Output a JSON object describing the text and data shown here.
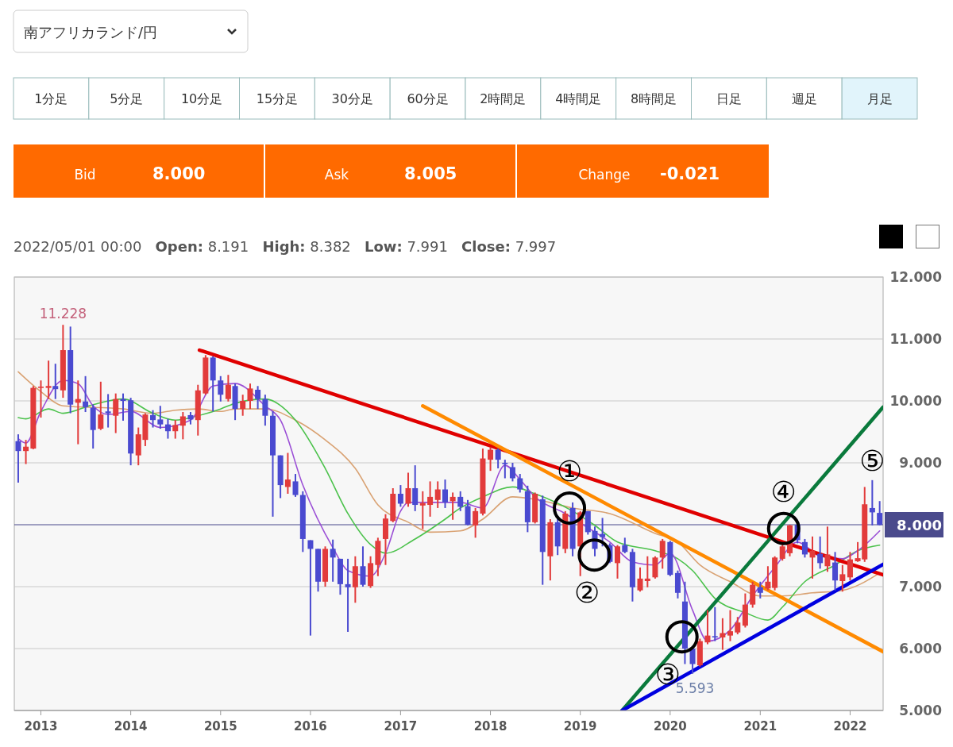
{
  "chart_data": [
    {
      "type": "other",
      "title": "南アフリカランド/円",
      "annotations": [
        "1分足",
        "5分足",
        "10分足",
        "15分足",
        "30分足",
        "60分足",
        "2時間足",
        "4時間足",
        "8時間足",
        "日足",
        "週足",
        "月足",
        "Bid",
        "8.000",
        "Ask",
        "8.005",
        "Change",
        "-0.021"
      ]
    },
    {
      "type": "candlestick",
      "subtitle": "2022/05/01 00:00   Open: 8.191   High: 8.382   Low: 7.991   Close: 7.997",
      "xlim": [
        "2012-09-15",
        "2022-05-15"
      ],
      "xticks": [
        "2013",
        "2014",
        "2015",
        "2016",
        "2017",
        "2018",
        "2019",
        "2020",
        "2021",
        "2022"
      ],
      "ylim": [
        5,
        12
      ],
      "yticks": [
        {
          "value": 12,
          "label": "12.000"
        },
        {
          "value": 11,
          "label": "11.000"
        },
        {
          "value": 10,
          "label": "10.000"
        },
        {
          "value": 9,
          "label": "9.000"
        },
        {
          "value": 7,
          "label": "7.000"
        },
        {
          "value": 6,
          "label": "6.000"
        },
        {
          "value": 5,
          "label": "5.000"
        }
      ],
      "grid": "y",
      "ref_lines": [
        {
          "axis": "y",
          "value": 8.0,
          "label": "8.000",
          "color": "#4a4a8c"
        }
      ],
      "annotations": [
        {
          "text": "11.228",
          "x": "2013-04",
          "y": 11.228
        },
        {
          "text": "5.593",
          "x": "2020-04",
          "y": 5.593
        },
        {
          "text": "①",
          "x": "2018-11-18",
          "y": 8.27
        },
        {
          "text": "②",
          "x": "2019-02-27",
          "y": 7.51
        },
        {
          "text": "③",
          "x": "2020-02-18",
          "y": 6.19
        },
        {
          "text": "④",
          "x": "2021-04-06",
          "y": 7.94
        },
        {
          "text": "⑤",
          "x": "2022-04",
          "y": 8.72
        }
      ],
      "series": [
        {
          "type": "line",
          "color": "#d9a273",
          "x": [
            "2012-10",
            "2013-01",
            "2013-04",
            "2013-12",
            "2014-04",
            "2014-07",
            "2014-10",
            "2015-01",
            "2015-03",
            "2015-07",
            "2015-11",
            "2016-03",
            "2016-07",
            "2016-10",
            "2017-02",
            "2017-05",
            "2017-09",
            "2017-12",
            "2018-04",
            "2018-07",
            "2018-12",
            "2019-05",
            "2019-11",
            "2020-02",
            "2020-05",
            "2020-09",
            "2021-01",
            "2021-04",
            "2021-08",
            "2021-12",
            "2022-05"
          ],
          "values": [
            10.47,
            10.15,
            9.92,
            9.87,
            9.8,
            9.85,
            9.87,
            9.83,
            9.87,
            9.87,
            9.69,
            9.37,
            8.91,
            8.32,
            8.04,
            7.88,
            7.9,
            8.09,
            8.45,
            8.41,
            8.27,
            8.18,
            7.86,
            7.72,
            7.35,
            7.08,
            6.85,
            6.85,
            6.9,
            6.94,
            7.22
          ]
        },
        {
          "type": "line",
          "color": "#4cc24c",
          "x": [
            "2012-10",
            "2012-11",
            "2013-02",
            "2013-04",
            "2013-08",
            "2013-12",
            "2014-04",
            "2014-07",
            "2014-10",
            "2015-01",
            "2015-03",
            "2015-07",
            "2015-11",
            "2016-03",
            "2016-06",
            "2016-09",
            "2016-11",
            "2017-03",
            "2017-07",
            "2017-09",
            "2017-12",
            "2018-04",
            "2018-07",
            "2018-12",
            "2019-03",
            "2019-06",
            "2019-11",
            "2020-02",
            "2020-04",
            "2020-07",
            "2020-11",
            "2021-02",
            "2021-04",
            "2021-07",
            "2021-11",
            "2022-02",
            "2022-05"
          ],
          "values": [
            9.73,
            9.71,
            9.87,
            9.8,
            9.94,
            10.03,
            9.8,
            9.69,
            9.76,
            9.87,
            9.96,
            10.03,
            9.69,
            8.91,
            8.18,
            7.68,
            7.54,
            7.77,
            8.09,
            8.27,
            8.45,
            8.61,
            8.5,
            8.22,
            7.99,
            7.72,
            7.58,
            7.45,
            7.26,
            6.81,
            6.58,
            6.46,
            6.67,
            7.08,
            7.35,
            7.58,
            7.67
          ]
        },
        {
          "type": "line",
          "color": "#9b4fd6",
          "x": [
            "2012-10",
            "2012-11",
            "2013-01",
            "2013-04",
            "2013-06",
            "2013-08",
            "2013-10",
            "2014-01",
            "2014-05",
            "2014-09",
            "2014-12",
            "2015-03",
            "2015-07",
            "2015-09",
            "2015-12",
            "2016-04",
            "2016-06",
            "2016-09",
            "2016-11",
            "2017-01",
            "2017-02",
            "2017-09",
            "2017-12",
            "2018-03",
            "2018-05",
            "2018-07",
            "2018-11",
            "2019-02",
            "2019-05",
            "2019-08",
            "2019-11",
            "2020-01",
            "2020-04",
            "2020-06",
            "2020-09",
            "2020-12",
            "2021-03",
            "2021-06",
            "2021-09",
            "2021-12",
            "2022-02",
            "2022-05"
          ],
          "values": [
            9.39,
            9.32,
            9.83,
            10.33,
            10.28,
            9.92,
            9.78,
            9.83,
            9.57,
            9.69,
            10.24,
            10.28,
            9.92,
            9.69,
            8.64,
            7.63,
            7.26,
            7.17,
            7.54,
            8.22,
            8.36,
            8.36,
            8.27,
            8.96,
            8.73,
            8.45,
            8.18,
            7.95,
            7.72,
            7.4,
            7.35,
            7.54,
            6.62,
            6.12,
            6.3,
            6.85,
            7.31,
            7.72,
            7.49,
            7.45,
            7.58,
            7.9
          ]
        },
        {
          "type": "candlestick",
          "color": "#e23b3b",
          "x": [
            "2012-11",
            "2012-12",
            "2013-01",
            "2013-02",
            "2013-04",
            "2013-06",
            "2013-09",
            "2013-11",
            "2014-02",
            "2014-03",
            "2014-07",
            "2014-08",
            "2014-10",
            "2014-11",
            "2015-02",
            "2015-04",
            "2015-05",
            "2015-10",
            "2016-03",
            "2016-07",
            "2016-09",
            "2016-10",
            "2016-11",
            "2016-12",
            "2017-02",
            "2017-04",
            "2017-05",
            "2017-06",
            "2017-08",
            "2017-11",
            "2017-12",
            "2018-01",
            "2018-07",
            "2018-09",
            "2018-11",
            "2019-01",
            "2019-06",
            "2019-09",
            "2019-10",
            "2019-11",
            "2019-12",
            "2020-05",
            "2020-06",
            "2020-08",
            "2020-09",
            "2020-10",
            "2020-11",
            "2020-12",
            "2021-02",
            "2021-03",
            "2021-04",
            "2021-05",
            "2021-08",
            "2021-10",
            "2021-12",
            "2022-01",
            "2022-02",
            "2022-03"
          ],
          "ohlc": [
            [
              9.19,
              9.37,
              8.98,
              9.26
            ],
            [
              9.23,
              10.24,
              9.22,
              10.21
            ],
            [
              10.21,
              10.33,
              9.73,
              10.23
            ],
            [
              10.21,
              10.65,
              10.03,
              10.24
            ],
            [
              10.17,
              11.228,
              10.05,
              10.82
            ],
            [
              9.97,
              10.33,
              9.3,
              10.03
            ],
            [
              9.55,
              10.31,
              9.53,
              9.78
            ],
            [
              9.76,
              10.12,
              9.48,
              10.03
            ],
            [
              9.12,
              9.57,
              8.96,
              9.46
            ],
            [
              9.37,
              9.8,
              9.27,
              9.78
            ],
            [
              9.51,
              9.69,
              9.39,
              9.61
            ],
            [
              9.6,
              9.82,
              9.38,
              9.75
            ],
            [
              9.69,
              10.26,
              9.44,
              10.17
            ],
            [
              10.12,
              10.74,
              10.1,
              10.7
            ],
            [
              10.03,
              10.42,
              9.99,
              10.26
            ],
            [
              9.87,
              10.1,
              9.76,
              10.0
            ],
            [
              10.0,
              10.28,
              9.87,
              10.2
            ],
            [
              8.61,
              9.16,
              8.5,
              8.73
            ],
            [
              7.08,
              7.65,
              7.0,
              7.61
            ],
            [
              6.99,
              7.49,
              6.74,
              7.33
            ],
            [
              7.01,
              7.49,
              6.98,
              7.38
            ],
            [
              7.35,
              7.79,
              7.17,
              7.74
            ],
            [
              7.77,
              8.17,
              7.35,
              8.1
            ],
            [
              8.06,
              8.59,
              8.04,
              8.5
            ],
            [
              8.34,
              8.84,
              8.29,
              8.59
            ],
            [
              8.31,
              8.54,
              7.93,
              8.35
            ],
            [
              8.32,
              8.7,
              8.13,
              8.45
            ],
            [
              8.4,
              8.7,
              8.27,
              8.57
            ],
            [
              8.38,
              8.52,
              8.08,
              8.45
            ],
            [
              7.99,
              8.27,
              7.79,
              8.22
            ],
            [
              8.18,
              9.23,
              8.15,
              9.07
            ],
            [
              9.05,
              9.25,
              8.87,
              9.21
            ],
            [
              8.04,
              8.52,
              8.02,
              8.5
            ],
            [
              7.49,
              8.09,
              7.1,
              8.04
            ],
            [
              7.61,
              8.22,
              7.54,
              8.18
            ],
            [
              7.65,
              8.22,
              7.17,
              8.2
            ],
            [
              7.38,
              7.67,
              7.13,
              7.65
            ],
            [
              6.94,
              7.31,
              6.92,
              7.13
            ],
            [
              7.09,
              7.49,
              6.99,
              7.13
            ],
            [
              7.15,
              7.49,
              7.13,
              7.47
            ],
            [
              7.47,
              7.77,
              7.29,
              7.74
            ],
            [
              5.73,
              6.16,
              5.71,
              6.12
            ],
            [
              6.1,
              6.62,
              6.07,
              6.21
            ],
            [
              6.18,
              6.49,
              5.98,
              6.25
            ],
            [
              6.21,
              6.62,
              6.12,
              6.28
            ],
            [
              6.26,
              6.51,
              6.23,
              6.42
            ],
            [
              6.37,
              6.89,
              6.34,
              6.71
            ],
            [
              6.71,
              7.08,
              6.66,
              7.03
            ],
            [
              6.97,
              7.33,
              6.94,
              7.08
            ],
            [
              6.98,
              7.49,
              6.94,
              7.47
            ],
            [
              7.45,
              7.7,
              7.42,
              7.65
            ],
            [
              7.54,
              8.0,
              7.49,
              7.99
            ],
            [
              7.47,
              7.81,
              7.13,
              7.58
            ],
            [
              7.33,
              7.97,
              7.24,
              7.52
            ],
            [
              7.09,
              7.35,
              6.92,
              7.2
            ],
            [
              7.15,
              7.56,
              7.1,
              7.44
            ],
            [
              7.41,
              7.72,
              7.4,
              7.46
            ],
            [
              7.44,
              8.61,
              7.4,
              8.33
            ]
          ]
        },
        {
          "type": "candlestick",
          "color": "#4a4ad0",
          "x": [
            "2012-10",
            "2013-03",
            "2013-05",
            "2013-07",
            "2013-08",
            "2013-10",
            "2013-12",
            "2014-01",
            "2014-04",
            "2014-05",
            "2014-06",
            "2014-09",
            "2014-12",
            "2015-01",
            "2015-03",
            "2015-06",
            "2015-07",
            "2015-08",
            "2015-09",
            "2015-11",
            "2015-12",
            "2016-01",
            "2016-02",
            "2016-04",
            "2016-05",
            "2016-06",
            "2016-08",
            "2017-01",
            "2017-03",
            "2017-07",
            "2017-09",
            "2017-10",
            "2018-02",
            "2018-03",
            "2018-04",
            "2018-05",
            "2018-06",
            "2018-08",
            "2018-10",
            "2018-12",
            "2019-02",
            "2019-03",
            "2019-04",
            "2019-05",
            "2019-07",
            "2019-08",
            "2020-01",
            "2020-02",
            "2020-03",
            "2020-04",
            "2020-07",
            "2021-01",
            "2021-06",
            "2021-07",
            "2021-09",
            "2021-11",
            "2022-04",
            "2022-05"
          ],
          "ohlc": [
            [
              9.35,
              9.46,
              8.68,
              9.19
            ],
            [
              10.24,
              10.6,
              10.03,
              10.19
            ],
            [
              10.82,
              11.2,
              9.8,
              9.94
            ],
            [
              9.99,
              10.4,
              9.82,
              9.9
            ],
            [
              9.89,
              9.94,
              9.23,
              9.53
            ],
            [
              9.83,
              10.11,
              9.57,
              9.8
            ],
            [
              10.03,
              10.12,
              9.68,
              10.0
            ],
            [
              10.01,
              10.05,
              8.96,
              9.15
            ],
            [
              9.77,
              9.85,
              9.57,
              9.69
            ],
            [
              9.7,
              9.92,
              9.55,
              9.62
            ],
            [
              9.62,
              9.71,
              9.39,
              9.51
            ],
            [
              9.77,
              9.82,
              9.62,
              9.7
            ],
            [
              10.7,
              10.72,
              9.83,
              10.33
            ],
            [
              10.33,
              10.4,
              9.99,
              10.1
            ],
            [
              10.24,
              10.28,
              9.69,
              9.87
            ],
            [
              10.18,
              10.24,
              9.87,
              10.03
            ],
            [
              10.03,
              10.1,
              9.6,
              9.76
            ],
            [
              9.76,
              9.83,
              8.13,
              9.12
            ],
            [
              9.12,
              9.12,
              8.43,
              8.64
            ],
            [
              8.7,
              8.82,
              8.45,
              8.48
            ],
            [
              8.48,
              8.54,
              7.56,
              7.77
            ],
            [
              7.75,
              7.75,
              6.21,
              7.61
            ],
            [
              7.61,
              7.61,
              6.92,
              7.08
            ],
            [
              7.61,
              7.76,
              7.08,
              7.47
            ],
            [
              7.45,
              7.45,
              6.87,
              7.04
            ],
            [
              7.04,
              7.45,
              6.27,
              6.99
            ],
            [
              7.33,
              7.65,
              7.0,
              7.03
            ],
            [
              8.5,
              8.64,
              8.29,
              8.34
            ],
            [
              8.59,
              8.96,
              8.22,
              8.32
            ],
            [
              8.57,
              8.73,
              8.27,
              8.36
            ],
            [
              8.45,
              8.54,
              8.22,
              8.29
            ],
            [
              8.3,
              8.4,
              7.99,
              8.0
            ],
            [
              9.21,
              9.23,
              8.91,
              9.05
            ],
            [
              9.0,
              9.05,
              8.75,
              8.98
            ],
            [
              8.93,
              9.0,
              8.7,
              8.75
            ],
            [
              8.75,
              8.82,
              8.52,
              8.57
            ],
            [
              8.54,
              8.63,
              7.88,
              8.04
            ],
            [
              8.41,
              8.47,
              7.03,
              7.56
            ],
            [
              8.04,
              8.09,
              7.51,
              7.65
            ],
            [
              8.27,
              8.36,
              7.49,
              7.61
            ],
            [
              8.22,
              8.22,
              7.84,
              7.88
            ],
            [
              7.9,
              7.97,
              7.49,
              7.61
            ],
            [
              7.85,
              8.11,
              7.65,
              7.8
            ],
            [
              7.67,
              7.7,
              7.38,
              7.4
            ],
            [
              7.67,
              7.79,
              7.54,
              7.56
            ],
            [
              7.56,
              7.61,
              6.76,
              6.99
            ],
            [
              7.72,
              7.74,
              7.17,
              7.19
            ],
            [
              7.22,
              7.26,
              6.81,
              6.9
            ],
            [
              6.76,
              7.08,
              5.75,
              6.0
            ],
            [
              6.0,
              6.02,
              5.593,
              5.75
            ],
            [
              6.2,
              6.67,
              6.12,
              6.18
            ],
            [
              6.99,
              7.08,
              6.81,
              6.9
            ],
            [
              8.0,
              8.02,
              7.7,
              7.75
            ],
            [
              7.72,
              7.77,
              7.47,
              7.52
            ],
            [
              7.53,
              7.81,
              7.29,
              7.38
            ],
            [
              7.39,
              7.56,
              6.94,
              7.1
            ],
            [
              8.27,
              8.72,
              7.99,
              8.2
            ],
            [
              8.191,
              8.382,
              7.991,
              7.997
            ]
          ]
        },
        {
          "type": "line",
          "color": "#e00000",
          "x": [
            "2014-10-07",
            "2022-05-15"
          ],
          "values": [
            10.82,
            7.19
          ]
        },
        {
          "type": "line",
          "color": "#ff8a00",
          "x": [
            "2017-04-01",
            "2022-05-15"
          ],
          "values": [
            9.92,
            5.95
          ]
        },
        {
          "type": "line",
          "color": "#0a7a3c",
          "x": [
            "2019-06-20",
            "2022-05-15"
          ],
          "values": [
            5.0,
            9.9
          ]
        },
        {
          "type": "line",
          "color": "#0000e0",
          "x": [
            "2019-06-20",
            "2022-05-15"
          ],
          "values": [
            5.0,
            7.36
          ]
        },
        {
          "type": "scatter",
          "color": "#000000",
          "marker": "circle",
          "x": [
            "2018-11-18",
            "2019-02-27",
            "2020-02-18",
            "2021-04-06"
          ],
          "values": [
            8.27,
            7.51,
            6.19,
            7.94
          ]
        }
      ]
    }
  ]
}
